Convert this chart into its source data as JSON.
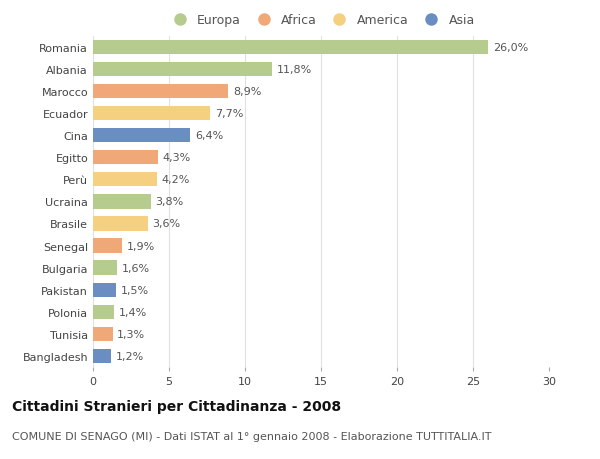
{
  "countries": [
    "Romania",
    "Albania",
    "Marocco",
    "Ecuador",
    "Cina",
    "Egitto",
    "Perù",
    "Ucraina",
    "Brasile",
    "Senegal",
    "Bulgaria",
    "Pakistan",
    "Polonia",
    "Tunisia",
    "Bangladesh"
  ],
  "values": [
    26.0,
    11.8,
    8.9,
    7.7,
    6.4,
    4.3,
    4.2,
    3.8,
    3.6,
    1.9,
    1.6,
    1.5,
    1.4,
    1.3,
    1.2
  ],
  "labels": [
    "26,0%",
    "11,8%",
    "8,9%",
    "7,7%",
    "6,4%",
    "4,3%",
    "4,2%",
    "3,8%",
    "3,6%",
    "1,9%",
    "1,6%",
    "1,5%",
    "1,4%",
    "1,3%",
    "1,2%"
  ],
  "continent": [
    "Europa",
    "Europa",
    "Africa",
    "America",
    "Asia",
    "Africa",
    "America",
    "Europa",
    "America",
    "Africa",
    "Europa",
    "Asia",
    "Europa",
    "Africa",
    "Asia"
  ],
  "colors": {
    "Europa": "#b5cc8e",
    "Africa": "#f0a878",
    "America": "#f5d080",
    "Asia": "#6b8ec2"
  },
  "legend_order": [
    "Europa",
    "Africa",
    "America",
    "Asia"
  ],
  "title": "Cittadini Stranieri per Cittadinanza - 2008",
  "subtitle": "COMUNE DI SENAGO (MI) - Dati ISTAT al 1° gennaio 2008 - Elaborazione TUTTITALIA.IT",
  "xlim": [
    0,
    30
  ],
  "xticks": [
    0,
    5,
    10,
    15,
    20,
    25,
    30
  ],
  "background_color": "#ffffff",
  "grid_color": "#e0e0e0",
  "title_fontsize": 10,
  "subtitle_fontsize": 8,
  "label_fontsize": 8,
  "tick_fontsize": 8,
  "legend_fontsize": 9
}
